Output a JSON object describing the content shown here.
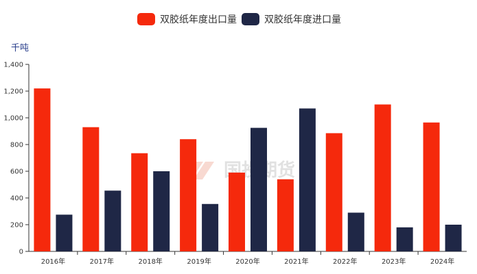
{
  "chart_data": {
    "type": "bar",
    "unit": "千吨",
    "categories": [
      "2016年",
      "2017年",
      "2018年",
      "2019年",
      "2020年",
      "2021年",
      "2022年",
      "2023年",
      "2024年"
    ],
    "series": [
      {
        "name": "双胶纸年度出口量",
        "color": "#f5290c",
        "values": [
          1220,
          930,
          735,
          840,
          590,
          540,
          885,
          1100,
          965
        ]
      },
      {
        "name": "双胶纸年度进口量",
        "color": "#1f2746",
        "values": [
          275,
          455,
          600,
          355,
          925,
          1070,
          290,
          180,
          200
        ]
      }
    ],
    "ylim": [
      0,
      1400
    ],
    "yticks": [
      "0",
      "200",
      "400",
      "600",
      "800",
      "1,000",
      "1,200",
      "1,400"
    ],
    "grid": false,
    "legend": "top-center"
  },
  "watermark": {
    "text": "国投期货"
  }
}
